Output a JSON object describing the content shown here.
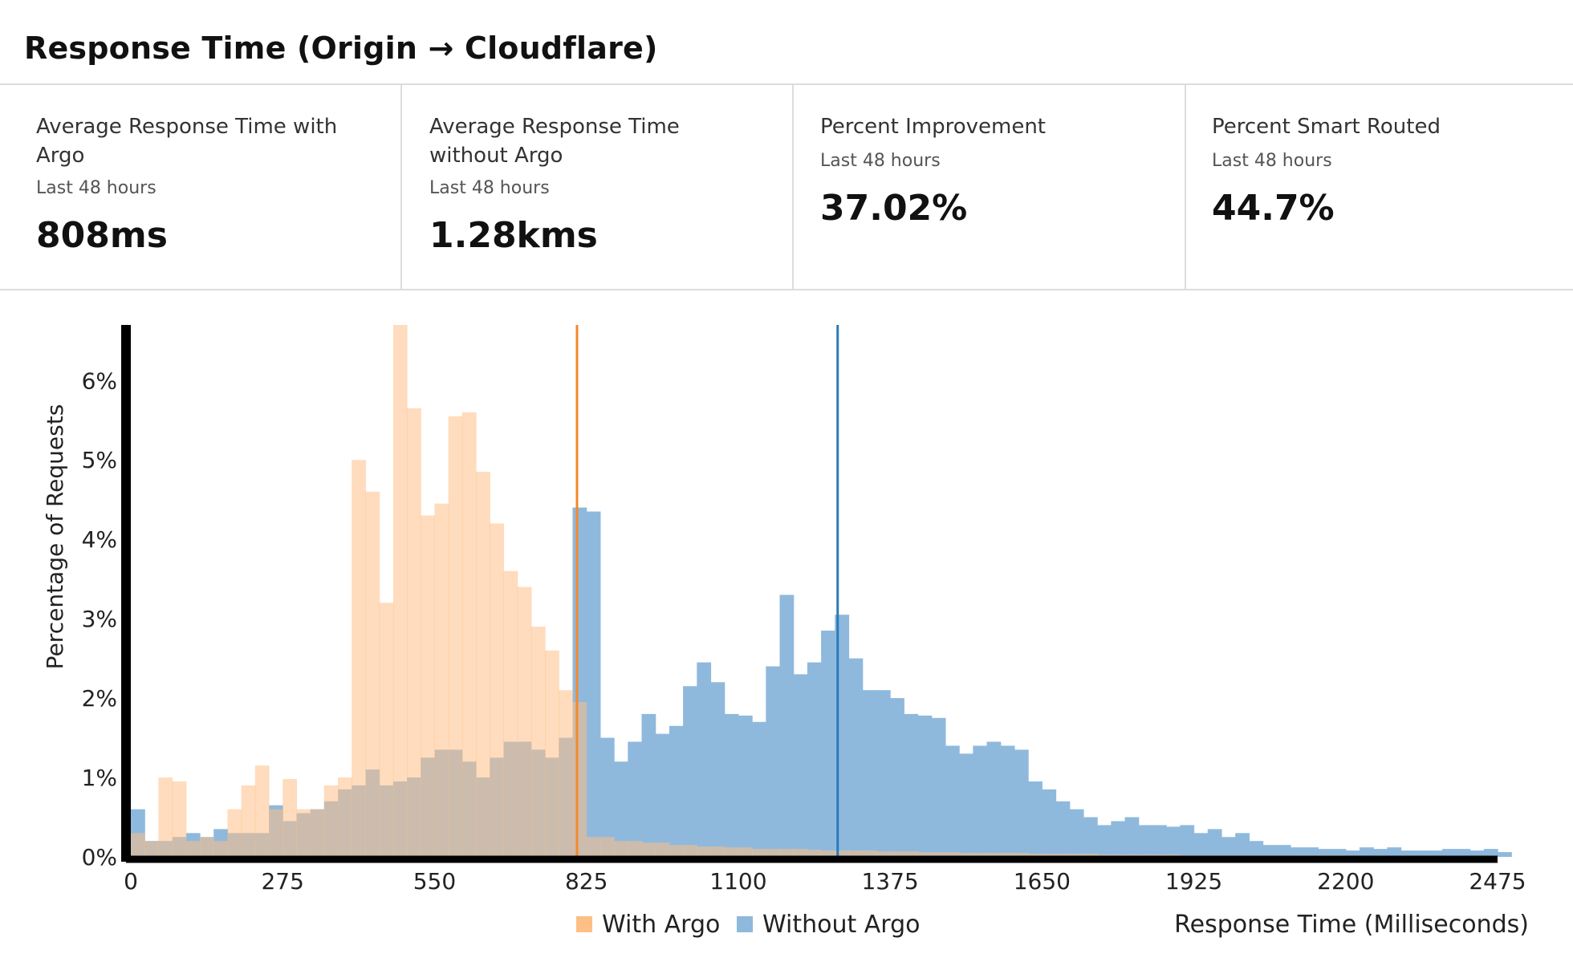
{
  "header": {
    "title": "Response Time (Origin → Cloudflare)"
  },
  "stats": [
    {
      "label": "Average Response Time with Argo",
      "period": "Last 48 hours",
      "value": "808ms"
    },
    {
      "label": "Average Response Time without Argo",
      "period": "Last 48 hours",
      "value": "1.28kms"
    },
    {
      "label": "Percent Improvement",
      "period": "Last 48 hours",
      "value": "37.02%"
    },
    {
      "label": "Percent Smart Routed",
      "period": "Last 48 hours",
      "value": "44.7%"
    }
  ],
  "chart_data": {
    "type": "histogram",
    "xlabel": "Response Time (Milliseconds)",
    "ylabel": "Percentage of Requests",
    "xlim": [
      0,
      2475
    ],
    "ylim": [
      0,
      6.7
    ],
    "bin_width": 25,
    "x_ticks": [
      "0",
      "275",
      "550",
      "825",
      "1100",
      "1375",
      "1650",
      "1925",
      "2200",
      "2475"
    ],
    "x_tick_values": [
      0,
      275,
      550,
      825,
      1100,
      1375,
      1650,
      1925,
      2200,
      2475
    ],
    "y_ticks": [
      "0%",
      "1%",
      "2%",
      "3%",
      "4%",
      "5%",
      "6%"
    ],
    "y_tick_values": [
      0,
      1,
      2,
      3,
      4,
      5,
      6
    ],
    "series": [
      {
        "name": "With Argo",
        "color": "#fdbf86",
        "mean": 808,
        "mean_line_color": "#f4892c",
        "values": [
          0.3,
          0.2,
          1.0,
          0.95,
          0.2,
          0.25,
          0.2,
          0.6,
          0.9,
          1.15,
          0.6,
          0.98,
          0.6,
          0.6,
          0.9,
          1.0,
          5.0,
          4.6,
          3.2,
          6.7,
          5.65,
          4.3,
          4.45,
          5.55,
          5.6,
          4.85,
          4.2,
          3.6,
          3.4,
          2.9,
          2.6,
          2.1,
          1.95,
          0.25,
          0.25,
          0.2,
          0.2,
          0.18,
          0.18,
          0.15,
          0.15,
          0.13,
          0.13,
          0.12,
          0.12,
          0.1,
          0.1,
          0.1,
          0.1,
          0.09,
          0.08,
          0.08,
          0.08,
          0.08,
          0.07,
          0.07,
          0.07,
          0.06,
          0.06,
          0.06,
          0.05,
          0.05,
          0.05,
          0.05,
          0.05,
          0.04,
          0.04,
          0.04,
          0.04,
          0.04,
          0.03,
          0.03,
          0.03,
          0.03,
          0.03,
          0.03,
          0.02,
          0.02,
          0.02,
          0.02,
          0.02,
          0.02,
          0.02,
          0.02,
          0.02,
          0.02,
          0.02,
          0.02,
          0.01,
          0.01,
          0.01,
          0.01,
          0.01,
          0.01,
          0.01,
          0.01,
          0.01,
          0.01,
          0.01
        ]
      },
      {
        "name": "Without Argo",
        "color": "#8fb9dc",
        "mean": 1280,
        "mean_line_color": "#2b7bba",
        "values": [
          0.6,
          0.2,
          0.2,
          0.25,
          0.3,
          0.25,
          0.35,
          0.3,
          0.3,
          0.3,
          0.65,
          0.45,
          0.55,
          0.6,
          0.7,
          0.85,
          0.9,
          1.1,
          0.9,
          0.95,
          1.0,
          1.25,
          1.35,
          1.35,
          1.2,
          1.0,
          1.25,
          1.45,
          1.45,
          1.35,
          1.25,
          1.5,
          4.4,
          4.35,
          1.5,
          1.2,
          1.45,
          1.8,
          1.55,
          1.65,
          2.15,
          2.45,
          2.2,
          1.8,
          1.78,
          1.7,
          2.4,
          3.3,
          2.3,
          2.45,
          2.85,
          3.05,
          2.5,
          2.1,
          2.1,
          2.0,
          1.8,
          1.78,
          1.75,
          1.4,
          1.3,
          1.4,
          1.45,
          1.4,
          1.35,
          0.95,
          0.85,
          0.7,
          0.6,
          0.5,
          0.4,
          0.45,
          0.5,
          0.4,
          0.4,
          0.38,
          0.4,
          0.3,
          0.35,
          0.25,
          0.3,
          0.2,
          0.15,
          0.15,
          0.12,
          0.12,
          0.1,
          0.1,
          0.08,
          0.12,
          0.1,
          0.12,
          0.08,
          0.08,
          0.08,
          0.1,
          0.1,
          0.08,
          0.1,
          0.06
        ]
      }
    ]
  }
}
